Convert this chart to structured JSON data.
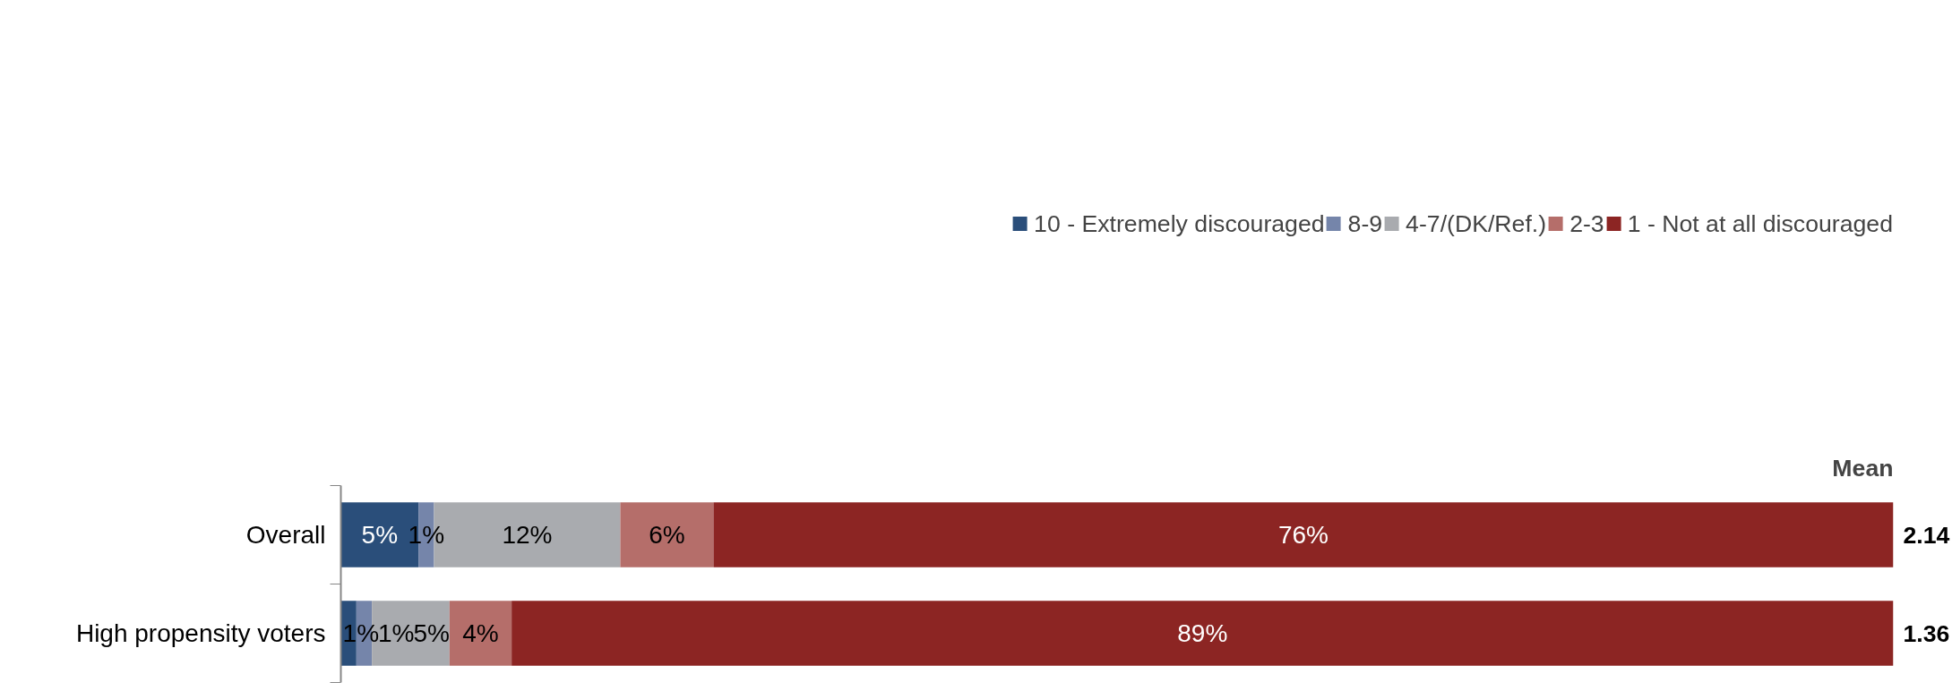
{
  "chart_data": {
    "type": "bar",
    "orientation": "horizontal",
    "stacked": true,
    "categories": [
      "Overall",
      "High propensity voters"
    ],
    "xlim": [
      0,
      100
    ],
    "tick_labels": "y",
    "grid": false,
    "legend": "top",
    "series": [
      {
        "name": "10 - Extremely discouraged",
        "color": "#2a4e7a",
        "values": [
          5,
          1
        ],
        "value_labels": [
          "5%",
          "1%"
        ]
      },
      {
        "name": "8-9",
        "color": "#7585aa",
        "values": [
          1,
          1
        ],
        "value_labels": [
          "1%",
          "1%"
        ]
      },
      {
        "name": "4-7/(DK/Ref.)",
        "color": "#a9abaf",
        "values": [
          12,
          5
        ],
        "value_labels": [
          "12%",
          "5%"
        ]
      },
      {
        "name": "2-3",
        "color": "#b56e6a",
        "values": [
          6,
          4
        ],
        "value_labels": [
          "6%",
          "4%"
        ]
      },
      {
        "name": "1 - Not at all discouraged",
        "color": "#8c2523",
        "values": [
          76,
          89
        ],
        "value_labels": [
          "76%",
          "89%"
        ]
      }
    ],
    "annotations": [
      "Mean",
      "2.14",
      "1.36"
    ]
  }
}
